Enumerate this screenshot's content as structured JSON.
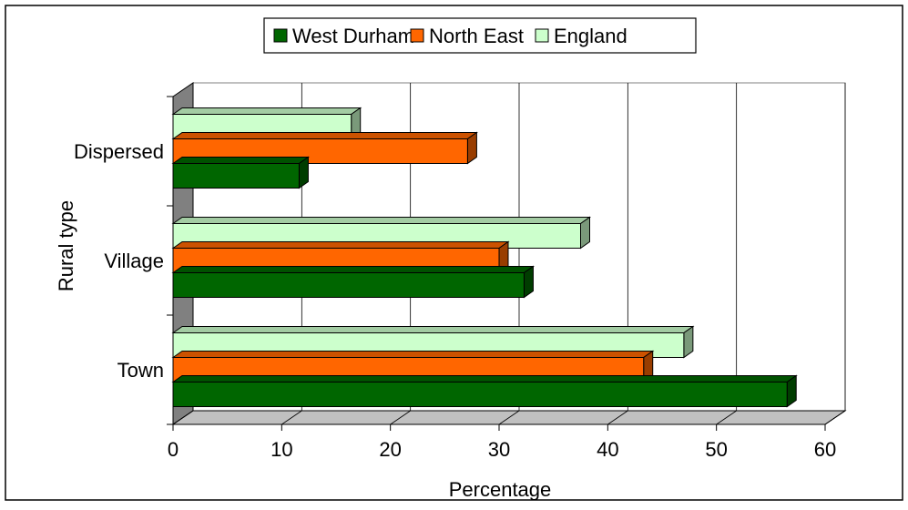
{
  "chart_data": {
    "type": "bar",
    "orientation": "horizontal",
    "three_d": true,
    "categories": [
      "Town",
      "Village",
      "Dispersed"
    ],
    "series": [
      {
        "name": "West Durham",
        "values": [
          56.5,
          32.3,
          11.6
        ],
        "color": "#006600"
      },
      {
        "name": "North East",
        "values": [
          43.3,
          30.0,
          27.1
        ],
        "color": "#ff6600"
      },
      {
        "name": "England",
        "values": [
          47.0,
          37.5,
          16.4
        ],
        "color": "#ccffcc"
      }
    ],
    "xlabel": "Percentage",
    "ylabel": "Rural type",
    "xlim": [
      0,
      60
    ],
    "xticks": [
      "0",
      "10",
      "20",
      "30",
      "40",
      "50",
      "60"
    ],
    "grid": "vertical",
    "legend_position": "top"
  }
}
